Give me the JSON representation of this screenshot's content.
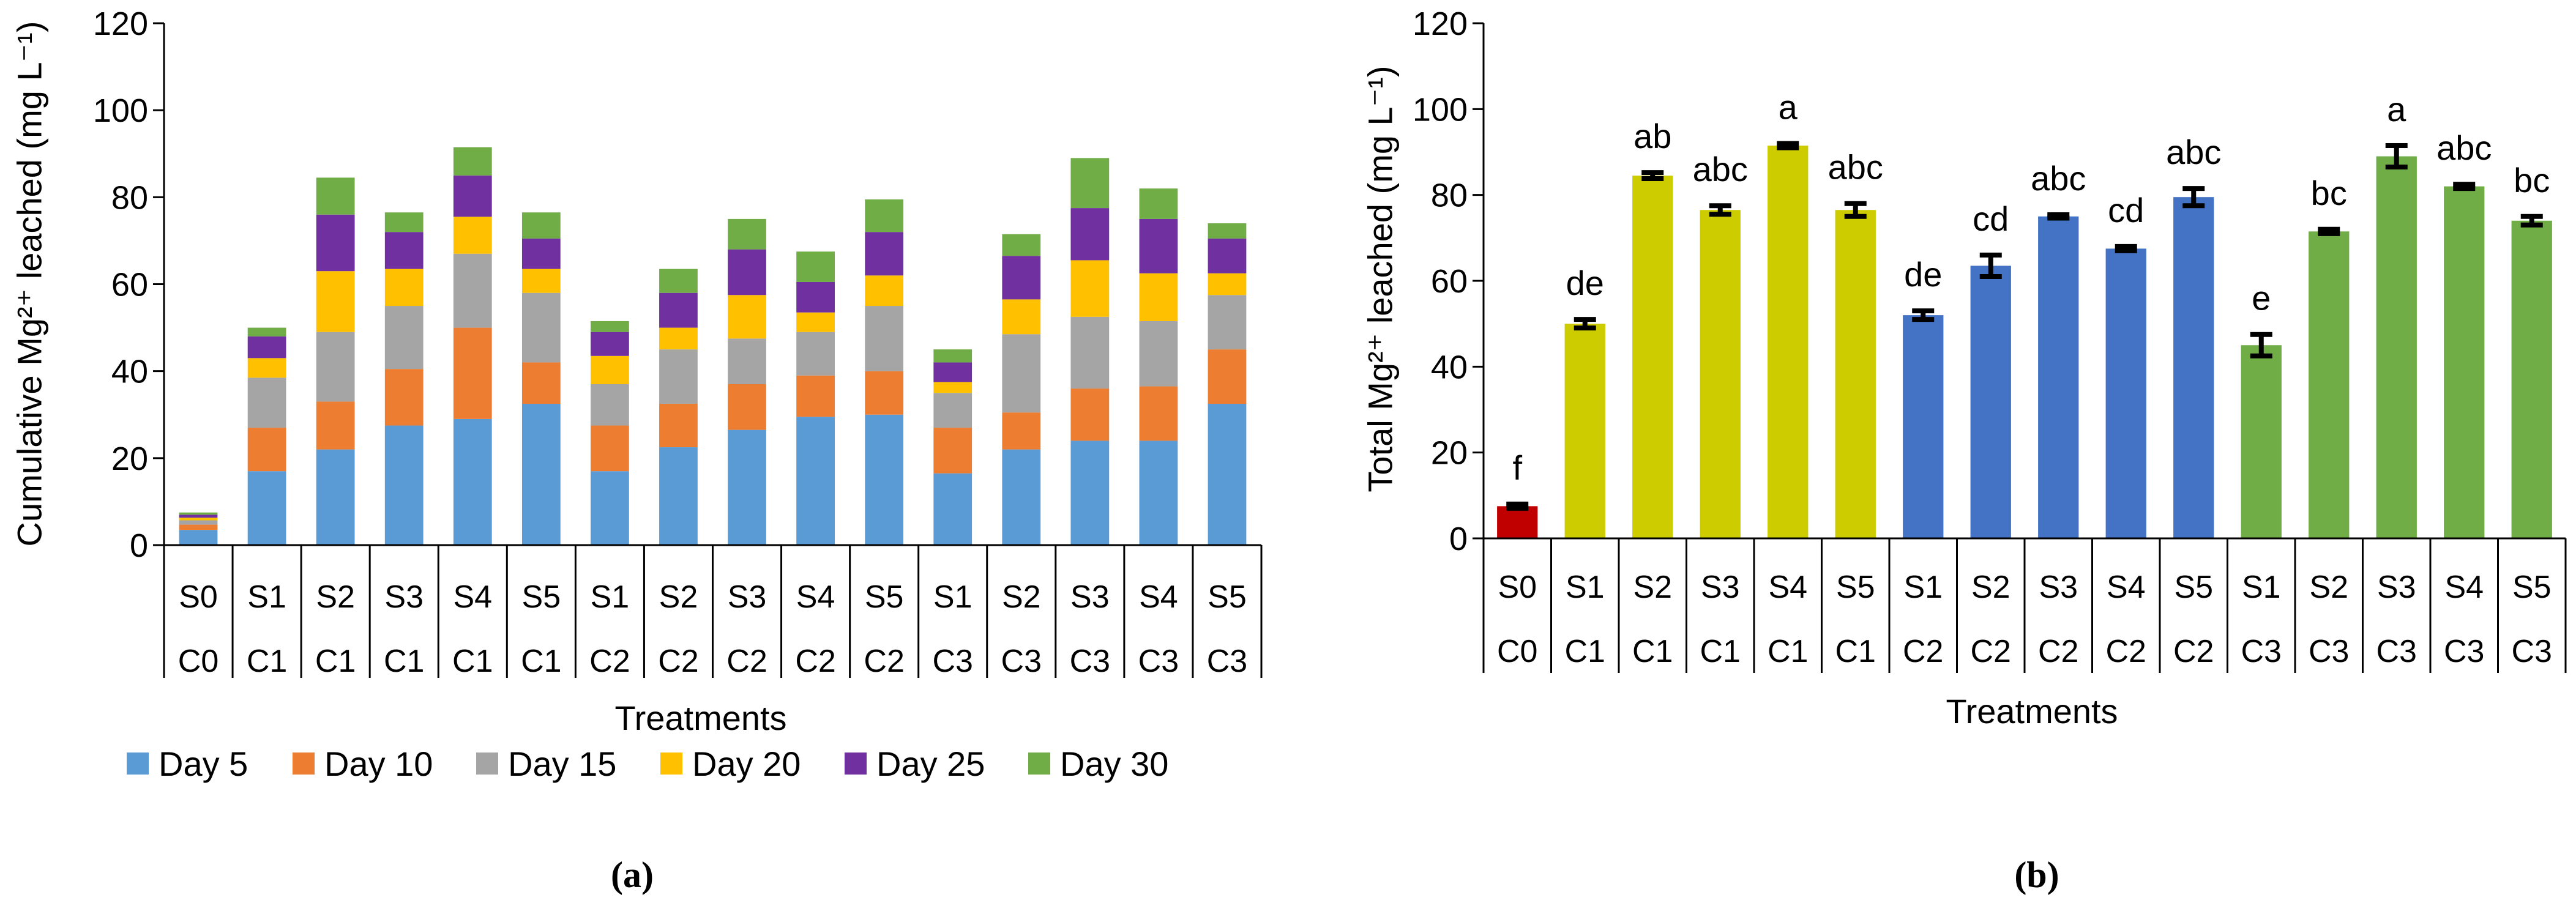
{
  "chart_data": [
    {
      "type": "bar",
      "stacked": true,
      "panel_label": "(a)",
      "ylabel": "Cumulative Mg²⁺ leached (mg L⁻¹)",
      "xlabel": "Treatments",
      "ylim": [
        0,
        120
      ],
      "yticks": [
        0,
        20,
        40,
        60,
        80,
        100,
        120
      ],
      "ytick_labels": [
        "0",
        "20",
        "40",
        "60",
        "80",
        "100",
        "120"
      ],
      "grid": false,
      "legend_position": "bottom",
      "categories": [
        {
          "s": "S0",
          "c": "C0"
        },
        {
          "s": "S1",
          "c": "C1"
        },
        {
          "s": "S2",
          "c": "C1"
        },
        {
          "s": "S3",
          "c": "C1"
        },
        {
          "s": "S4",
          "c": "C1"
        },
        {
          "s": "S5",
          "c": "C1"
        },
        {
          "s": "S1",
          "c": "C2"
        },
        {
          "s": "S2",
          "c": "C2"
        },
        {
          "s": "S3",
          "c": "C2"
        },
        {
          "s": "S4",
          "c": "C2"
        },
        {
          "s": "S5",
          "c": "C2"
        },
        {
          "s": "S1",
          "c": "C3"
        },
        {
          "s": "S2",
          "c": "C3"
        },
        {
          "s": "S3",
          "c": "C3"
        },
        {
          "s": "S4",
          "c": "C3"
        },
        {
          "s": "S5",
          "c": "C3"
        }
      ],
      "series": [
        {
          "name": "Day 5",
          "color": "#5B9BD5",
          "values": [
            3.5,
            17,
            22,
            27.5,
            29,
            32.5,
            17,
            22.5,
            26.5,
            29.5,
            30,
            16.5,
            22,
            24,
            24,
            32.5
          ]
        },
        {
          "name": "Day 10",
          "color": "#ED7D31",
          "values": [
            1.2,
            10,
            11,
            13,
            21,
            9.5,
            10.5,
            10,
            10.5,
            9.5,
            10,
            10.5,
            8.5,
            12,
            12.5,
            12.5
          ]
        },
        {
          "name": "Day 15",
          "color": "#A5A5A5",
          "values": [
            1.0,
            11.5,
            16,
            14.5,
            17,
            16,
            9.5,
            12.5,
            10.5,
            10,
            15,
            8,
            18,
            16.5,
            15,
            12.5
          ]
        },
        {
          "name": "Day 20",
          "color": "#FFC000",
          "values": [
            0.6,
            4.5,
            14,
            8.5,
            8.5,
            5.5,
            6.5,
            5,
            10,
            4.5,
            7,
            2.5,
            8,
            13,
            11,
            5
          ]
        },
        {
          "name": "Day 25",
          "color": "#7030A0",
          "values": [
            0.7,
            5,
            13,
            8.5,
            9.5,
            7,
            5.5,
            8,
            10.5,
            7,
            10,
            4.5,
            10,
            12,
            12.5,
            8
          ]
        },
        {
          "name": "Day 30",
          "color": "#70AD47",
          "values": [
            0.5,
            2,
            8.5,
            4.5,
            6.5,
            6,
            2.5,
            5.5,
            7,
            7,
            7.5,
            3,
            5,
            11.5,
            7,
            3.5
          ]
        }
      ]
    },
    {
      "type": "bar",
      "stacked": false,
      "panel_label": "(b)",
      "ylabel": "Total Mg²⁺ leached (mg L⁻¹)",
      "xlabel": "Treatments",
      "ylim": [
        0,
        120
      ],
      "yticks": [
        0,
        20,
        40,
        60,
        80,
        100,
        120
      ],
      "ytick_labels": [
        "0",
        "20",
        "40",
        "60",
        "80",
        "100",
        "120"
      ],
      "grid": false,
      "categories": [
        {
          "s": "S0",
          "c": "C0"
        },
        {
          "s": "S1",
          "c": "C1"
        },
        {
          "s": "S2",
          "c": "C1"
        },
        {
          "s": "S3",
          "c": "C1"
        },
        {
          "s": "S4",
          "c": "C1"
        },
        {
          "s": "S5",
          "c": "C1"
        },
        {
          "s": "S1",
          "c": "C2"
        },
        {
          "s": "S2",
          "c": "C2"
        },
        {
          "s": "S3",
          "c": "C2"
        },
        {
          "s": "S4",
          "c": "C2"
        },
        {
          "s": "S5",
          "c": "C2"
        },
        {
          "s": "S1",
          "c": "C3"
        },
        {
          "s": "S2",
          "c": "C3"
        },
        {
          "s": "S3",
          "c": "C3"
        },
        {
          "s": "S4",
          "c": "C3"
        },
        {
          "s": "S5",
          "c": "C3"
        }
      ],
      "values": [
        7.5,
        50,
        84.5,
        76.5,
        91.5,
        76.5,
        52,
        63.5,
        75,
        67.5,
        79.5,
        45,
        71.5,
        89,
        82,
        74
      ],
      "errors": [
        0.5,
        1.0,
        0.7,
        1.0,
        0.5,
        1.5,
        1.0,
        2.5,
        0.4,
        0.5,
        2.0,
        2.5,
        0.5,
        2.5,
        0.5,
        1.0
      ],
      "letters": [
        "f",
        "de",
        "ab",
        "abc",
        "a",
        "abc",
        "de",
        "cd",
        "abc",
        "cd",
        "abc",
        "e",
        "bc",
        "a",
        "abc",
        "bc"
      ],
      "colors": [
        "#C00000",
        "#CCCC00",
        "#CCCC00",
        "#CCCC00",
        "#CCCC00",
        "#CCCC00",
        "#4472C4",
        "#4472C4",
        "#4472C4",
        "#4472C4",
        "#4472C4",
        "#70AD47",
        "#70AD47",
        "#70AD47",
        "#70AD47",
        "#70AD47"
      ]
    }
  ]
}
